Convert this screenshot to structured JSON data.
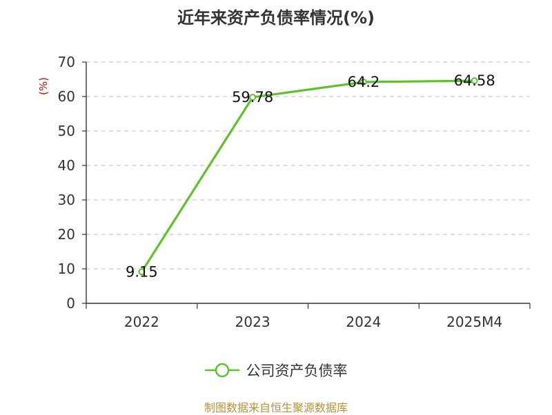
{
  "title": "近年来资产负债率情况(%)",
  "source_note": "制图数据来自恒生聚源数据库",
  "colors": {
    "line": "#5ec12b",
    "grid": "#cccccc",
    "axis": "#333333",
    "unit": "#cc0000",
    "source": "#b8923a"
  },
  "chart_data": {
    "type": "line",
    "title": "近年来资产负债率情况(%)",
    "categories": [
      "2022",
      "2023",
      "2024",
      "2025M4"
    ],
    "series": [
      {
        "name": "公司资产负债率",
        "values": [
          9.15,
          59.78,
          64.2,
          64.58
        ],
        "labels": [
          "9.15",
          "59.78",
          "64.2",
          "64.58"
        ]
      }
    ],
    "ylabel": "(%)",
    "ylim": [
      0,
      70
    ],
    "yticks": [
      "0",
      "10",
      "20",
      "30",
      "40",
      "50",
      "60",
      "70"
    ],
    "grid": true,
    "legend": "bottom-center"
  }
}
